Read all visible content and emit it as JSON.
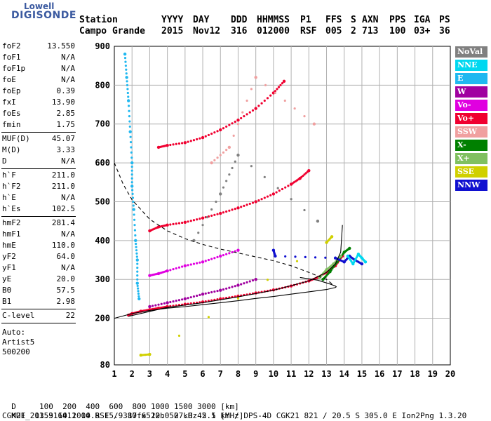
{
  "logo": {
    "top": "Lowell",
    "main": "DIGISONDE"
  },
  "header": {
    "station_label": "Station",
    "station_value": "Campo Grande",
    "cols": [
      {
        "label": "YYYY",
        "value": "2015"
      },
      {
        "label": "DAY",
        "value": "Nov12"
      },
      {
        "label": "DDD",
        "value": "316"
      },
      {
        "label": "HHMMSS",
        "value": "012000"
      },
      {
        "label": "P1",
        "value": "RSF"
      },
      {
        "label": "FFS",
        "value": "005"
      },
      {
        "label": "S",
        "value": "2"
      },
      {
        "label": "AXN",
        "value": "713"
      },
      {
        "label": "PPS",
        "value": "100"
      },
      {
        "label": "IGA",
        "value": "03+"
      },
      {
        "label": "PS",
        "value": "36"
      }
    ]
  },
  "params_block1": [
    {
      "key": "foF2",
      "value": "13.550"
    },
    {
      "key": "foF1",
      "value": "N/A"
    },
    {
      "key": "foF1p",
      "value": "N/A"
    },
    {
      "key": "foE",
      "value": "N/A"
    },
    {
      "key": "foEp",
      "value": "0.39"
    },
    {
      "key": "fxI",
      "value": "13.90"
    },
    {
      "key": "foEs",
      "value": "2.85"
    },
    {
      "key": "fmin",
      "value": "1.75"
    }
  ],
  "params_block2": [
    {
      "key": "MUF(D)",
      "value": "45.07"
    },
    {
      "key": "M(D)",
      "value": "3.33"
    },
    {
      "key": "D",
      "value": "N/A"
    }
  ],
  "params_block3": [
    {
      "key": "h`F",
      "value": "211.0"
    },
    {
      "key": "h`F2",
      "value": "211.0"
    },
    {
      "key": "h`E",
      "value": "N/A"
    },
    {
      "key": "h`Es",
      "value": "102.5"
    }
  ],
  "params_block4": [
    {
      "key": "hmF2",
      "value": "281.4"
    },
    {
      "key": "hmF1",
      "value": "N/A"
    },
    {
      "key": "hmE",
      "value": "110.0"
    },
    {
      "key": "yF2",
      "value": "64.0"
    },
    {
      "key": "yF1",
      "value": "N/A"
    },
    {
      "key": "yE",
      "value": "20.0"
    },
    {
      "key": "B0",
      "value": "57.5"
    },
    {
      "key": "B1",
      "value": "2.98"
    }
  ],
  "params_block5": [
    {
      "key": "C-level",
      "value": "22"
    }
  ],
  "autoscale": {
    "line1": "Auto:",
    "line2": "Artist5",
    "line3": "500200"
  },
  "legend": [
    {
      "label": "NoVal",
      "color": "#808080"
    },
    {
      "label": "NNE",
      "color": "#00d8f0"
    },
    {
      "label": "E",
      "color": "#20b8f0"
    },
    {
      "label": "W",
      "color": "#a000a0"
    },
    {
      "label": "Vo-",
      "color": "#e000e0"
    },
    {
      "label": "Vo+",
      "color": "#f00030"
    },
    {
      "label": "SSW",
      "color": "#f0a0a0"
    },
    {
      "label": "X-",
      "color": "#008000"
    },
    {
      "label": "X+",
      "color": "#80c060"
    },
    {
      "label": "SSE",
      "color": "#d0d000"
    },
    {
      "label": "NNW",
      "color": "#1010d0"
    }
  ],
  "bottom": {
    "d_label": "D",
    "d_values": "100  200  400  600  800 1000 1500 3000 [km]",
    "muf_label": "MUF",
    "muf_values": "13.9 14.1 14.8 15.9 17.6 20.0 27.0 45.1 [MHz]",
    "footer": "CGK21_2015316012000.RSF / 380fx512h 50 kHz 2.5 km / DPS-4D CGK21 821 / 20.5 S 305.0 E Ion2Png 1.3.20"
  },
  "chart_data": {
    "type": "scatter",
    "xlim": [
      1,
      20
    ],
    "ylim": [
      80,
      900
    ],
    "x_ticks": [
      1,
      2,
      3,
      4,
      5,
      6,
      7,
      8,
      9,
      10,
      11,
      12,
      13,
      14,
      15,
      16,
      17,
      18,
      19,
      20
    ],
    "y_ticks": [
      80,
      200,
      300,
      400,
      500,
      600,
      700,
      800,
      900
    ],
    "grid": true,
    "legend_position": "right",
    "series": [
      {
        "name": "Vo+",
        "color": "#f00030",
        "points": [
          [
            1.8,
            208
          ],
          [
            2.0,
            212
          ],
          [
            2.5,
            218
          ],
          [
            3.0,
            222
          ],
          [
            3.5,
            226
          ],
          [
            4.0,
            230
          ],
          [
            5.0,
            236
          ],
          [
            6.0,
            242
          ],
          [
            7.0,
            250
          ],
          [
            8.0,
            257
          ],
          [
            9.0,
            265
          ],
          [
            10.0,
            273
          ],
          [
            11.0,
            283
          ],
          [
            12.0,
            296
          ],
          [
            12.5,
            305
          ],
          [
            13.0,
            318
          ],
          [
            13.5,
            335
          ],
          [
            13.9,
            360
          ]
        ]
      },
      {
        "name": "Vo+",
        "color": "#f00030",
        "points": [
          [
            3.0,
            425
          ],
          [
            3.5,
            435
          ],
          [
            4.0,
            440
          ],
          [
            5.0,
            447
          ],
          [
            6.0,
            458
          ],
          [
            7.0,
            470
          ],
          [
            8.0,
            484
          ],
          [
            9.0,
            500
          ],
          [
            10.0,
            520
          ],
          [
            11.0,
            545
          ],
          [
            11.5,
            560
          ],
          [
            12.0,
            580
          ]
        ]
      },
      {
        "name": "Vo+",
        "color": "#f00030",
        "points": [
          [
            3.5,
            640
          ],
          [
            4.0,
            645
          ],
          [
            5.0,
            652
          ],
          [
            6.0,
            665
          ],
          [
            7.0,
            685
          ],
          [
            8.0,
            710
          ],
          [
            9.0,
            740
          ],
          [
            10.0,
            780
          ],
          [
            10.6,
            810
          ]
        ]
      },
      {
        "name": "Vo-",
        "color": "#e000e0",
        "points": [
          [
            3.0,
            310
          ],
          [
            3.5,
            315
          ],
          [
            4.0,
            322
          ],
          [
            5.0,
            335
          ],
          [
            6.0,
            345
          ],
          [
            7.0,
            360
          ],
          [
            8.0,
            375
          ]
        ]
      },
      {
        "name": "W",
        "color": "#a000a0",
        "points": [
          [
            3.0,
            230
          ],
          [
            4.0,
            240
          ],
          [
            5.0,
            250
          ],
          [
            6.0,
            262
          ],
          [
            7.0,
            272
          ],
          [
            8.0,
            285
          ],
          [
            9.0,
            300
          ]
        ]
      },
      {
        "name": "E",
        "color": "#20b8f0",
        "points": [
          [
            1.6,
            880
          ],
          [
            1.7,
            820
          ],
          [
            1.8,
            760
          ],
          [
            1.9,
            680
          ],
          [
            2.0,
            600
          ],
          [
            2.0,
            540
          ],
          [
            2.1,
            480
          ],
          [
            2.2,
            400
          ],
          [
            2.3,
            350
          ],
          [
            2.3,
            290
          ],
          [
            2.4,
            250
          ]
        ]
      },
      {
        "name": "X-",
        "color": "#008000",
        "points": [
          [
            12.8,
            300
          ],
          [
            13.2,
            320
          ],
          [
            13.6,
            345
          ],
          [
            14.0,
            370
          ],
          [
            14.3,
            380
          ]
        ]
      },
      {
        "name": "X+",
        "color": "#80c060",
        "points": [
          [
            12.6,
            305
          ],
          [
            13.0,
            325
          ],
          [
            13.4,
            340
          ],
          [
            13.8,
            360
          ]
        ]
      },
      {
        "name": "NNW",
        "color": "#1010d0",
        "points": [
          [
            10.0,
            375
          ],
          [
            10.1,
            360
          ],
          [
            13.5,
            355
          ],
          [
            14.0,
            345
          ],
          [
            14.3,
            360
          ],
          [
            14.6,
            350
          ],
          [
            15.0,
            340
          ]
        ]
      },
      {
        "name": "SSE",
        "color": "#d0d000",
        "points": [
          [
            2.5,
            105
          ],
          [
            3.0,
            107
          ],
          [
            13.0,
            395
          ],
          [
            13.3,
            410
          ]
        ]
      },
      {
        "name": "NNE",
        "color": "#00d8f0",
        "points": [
          [
            14.2,
            360
          ],
          [
            14.5,
            340
          ],
          [
            14.8,
            365
          ],
          [
            15.0,
            355
          ],
          [
            15.2,
            345
          ]
        ]
      },
      {
        "name": "SSW",
        "color": "#f0a0a0",
        "points": [
          [
            6.5,
            600
          ],
          [
            7.5,
            640
          ],
          [
            9.0,
            820
          ],
          [
            12.3,
            700
          ]
        ]
      },
      {
        "name": "NoVal",
        "color": "#808080",
        "points": [
          [
            5.5,
            400
          ],
          [
            7.0,
            520
          ],
          [
            8.0,
            620
          ],
          [
            12.5,
            450
          ]
        ]
      }
    ],
    "profile_solid": [
      [
        1.0,
        200
      ],
      [
        2.0,
        212
      ],
      [
        3.0,
        220
      ],
      [
        4.0,
        226
      ],
      [
        5.0,
        230
      ],
      [
        6.0,
        235
      ],
      [
        7.0,
        240
      ],
      [
        8.0,
        245
      ],
      [
        9.0,
        251
      ],
      [
        10.0,
        256
      ],
      [
        11.0,
        262
      ],
      [
        12.0,
        268
      ],
      [
        13.0,
        274
      ],
      [
        13.5,
        279
      ],
      [
        13.55,
        281
      ],
      [
        13.5,
        283
      ],
      [
        13.2,
        288
      ],
      [
        12.5,
        298
      ],
      [
        11.5,
        305
      ]
    ],
    "trace_fit_solid": [
      [
        1.8,
        205
      ],
      [
        4.0,
        228
      ],
      [
        6.0,
        240
      ],
      [
        8.0,
        255
      ],
      [
        10.0,
        272
      ],
      [
        12.0,
        296
      ],
      [
        13.0,
        318
      ],
      [
        13.5,
        340
      ],
      [
        13.8,
        370
      ],
      [
        13.9,
        440
      ]
    ],
    "muf_dashed": [
      [
        1.0,
        600
      ],
      [
        1.5,
        545
      ],
      [
        2.0,
        505
      ],
      [
        3.0,
        455
      ],
      [
        4.0,
        425
      ],
      [
        5.0,
        405
      ],
      [
        6.0,
        390
      ],
      [
        7.0,
        378
      ],
      [
        8.0,
        368
      ],
      [
        9.0,
        358
      ],
      [
        10.0,
        348
      ],
      [
        11.0,
        335
      ],
      [
        12.0,
        318
      ],
      [
        13.0,
        300
      ],
      [
        13.4,
        285
      ]
    ]
  }
}
